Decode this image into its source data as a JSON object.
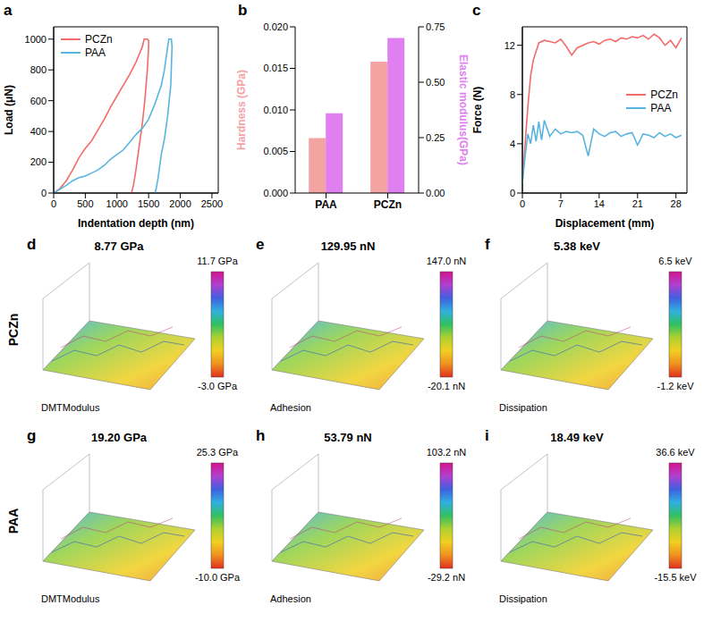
{
  "chart_data": [
    {
      "label": "a",
      "type": "line",
      "x_label": "Indentation depth (nm)",
      "y_label": "Load (μN)",
      "xlim": [
        0,
        2600
      ],
      "xticks": [
        0,
        500,
        1000,
        1500,
        2000,
        2500
      ],
      "ylim": [
        0,
        1080
      ],
      "yticks": [
        0,
        200,
        400,
        600,
        800,
        1000
      ],
      "legend": "upper left",
      "series": [
        {
          "name": "PCZn",
          "color": "#f26b6b",
          "x": [
            0,
            100,
            200,
            300,
            400,
            500,
            600,
            700,
            800,
            900,
            1000,
            1100,
            1200,
            1300,
            1350,
            1400,
            1430,
            1480,
            1500,
            1500,
            1480,
            1440,
            1400,
            1350,
            1300,
            1260,
            1230
          ],
          "values": [
            0,
            30,
            80,
            150,
            230,
            290,
            340,
            410,
            480,
            560,
            630,
            700,
            770,
            850,
            900,
            950,
            1000,
            1000,
            990,
            950,
            800,
            600,
            450,
            300,
            150,
            50,
            0
          ]
        },
        {
          "name": "PAA",
          "color": "#5ab4e0",
          "x": [
            0,
            200,
            300,
            400,
            500,
            600,
            700,
            800,
            900,
            1000,
            1100,
            1200,
            1300,
            1400,
            1500,
            1600,
            1700,
            1750,
            1800,
            1820,
            1860,
            1870,
            1850,
            1800,
            1750,
            1700,
            1650,
            1620,
            1600
          ],
          "values": [
            0,
            50,
            80,
            100,
            110,
            130,
            150,
            180,
            220,
            250,
            280,
            330,
            380,
            420,
            480,
            580,
            700,
            800,
            950,
            1000,
            1000,
            950,
            700,
            500,
            350,
            250,
            100,
            30,
            0
          ]
        }
      ]
    },
    {
      "label": "b",
      "type": "bar",
      "categories": [
        "PAA",
        "PCZn"
      ],
      "ylim": [
        0,
        0.02
      ],
      "yticks": [
        {
          "value": 0,
          "label": "0.000"
        },
        0.005,
        {
          "value": 0.01,
          "label": "0.010"
        },
        0.015,
        {
          "value": 0.02,
          "label": "0.020"
        }
      ],
      "y2lim": [
        0,
        0.75
      ],
      "y2ticks": [
        {
          "value": 0,
          "label": "0.00"
        },
        0.25,
        {
          "value": 0.5,
          "label": "0.50"
        },
        0.75
      ],
      "series": [
        {
          "name": "Hardness (GPa)",
          "color": "#f4a3a3",
          "values": [
            0.0066,
            0.0158
          ]
        },
        {
          "name": "Elastic modulus(GPa)",
          "color": "#df7ff0",
          "axis": "y2",
          "values": [
            0.36,
            0.7
          ]
        }
      ]
    },
    {
      "label": "c",
      "type": "line",
      "x_label": "Displacement (mm)",
      "y_label": "Force (N)",
      "xlim": [
        0,
        30
      ],
      "xticks": [
        0,
        7,
        14,
        21,
        28
      ],
      "ylim": [
        0,
        13.5
      ],
      "yticks": [
        0,
        4,
        8,
        12
      ],
      "legend": "right",
      "series": [
        {
          "name": "PCZn",
          "color": "#f26b6b",
          "x": [
            0,
            0.5,
            1,
            1.5,
            2,
            2.5,
            3,
            4,
            5,
            6,
            7,
            8,
            9,
            10,
            11,
            12,
            13,
            14,
            15,
            16,
            17,
            18,
            19,
            20,
            21,
            22,
            23,
            24,
            25,
            26,
            27,
            28,
            29
          ],
          "values": [
            0.8,
            4,
            7,
            9.5,
            10.8,
            11.5,
            12.2,
            12.4,
            12.3,
            12.2,
            12.5,
            11.9,
            11.2,
            11.8,
            12.0,
            12.2,
            12.3,
            12.1,
            12.4,
            12.5,
            12.3,
            12.6,
            12.5,
            12.7,
            12.6,
            12.8,
            12.5,
            12.9,
            12.6,
            12.0,
            12.4,
            11.8,
            12.6
          ]
        },
        {
          "name": "PAA",
          "color": "#5ab4e0",
          "x": [
            0,
            0.5,
            1,
            1.5,
            2,
            2.5,
            3,
            3.5,
            4,
            5,
            6,
            7,
            8,
            9,
            10,
            11,
            12,
            13,
            14,
            15,
            16,
            17,
            18,
            19,
            20,
            21,
            22,
            23,
            24,
            25,
            26,
            27,
            28,
            29
          ],
          "values": [
            0.8,
            3,
            4.8,
            4.0,
            5.5,
            4.2,
            5.8,
            4.3,
            5.9,
            4.6,
            5.2,
            4.8,
            5.0,
            4.9,
            5.0,
            4.7,
            3.0,
            5.2,
            4.8,
            4.6,
            4.9,
            5.0,
            4.6,
            4.8,
            4.9,
            3.9,
            4.8,
            4.7,
            4.5,
            4.9,
            4.6,
            4.8,
            4.5,
            4.7
          ]
        }
      ]
    }
  ],
  "maps": {
    "rows": [
      {
        "label": "PCZn",
        "panels": [
          {
            "label": "d",
            "title": "8.77 GPa",
            "colorbar": {
              "range": [
                -3.0,
                11.7
              ],
              "labels": [
                "11.7 GPa",
                "-3.0 GPa"
              ]
            },
            "caption": "DMTModulus"
          },
          {
            "label": "e",
            "title": "129.95 nN",
            "colorbar": {
              "range": [
                -20.1,
                147.0
              ],
              "labels": [
                "147.0 nN",
                "-20.1 nN"
              ]
            },
            "caption": "Adhesion"
          },
          {
            "label": "f",
            "title": "5.38 keV",
            "colorbar": {
              "range": [
                -1.2,
                6.5
              ],
              "labels": [
                "6.5 keV",
                "-1.2 keV"
              ]
            },
            "caption": "Dissipation"
          }
        ]
      },
      {
        "label": "PAA",
        "panels": [
          {
            "label": "g",
            "title": "19.20 GPa",
            "colorbar": {
              "range": [
                -10.0,
                25.3
              ],
              "labels": [
                "25.3 GPa",
                "-10.0 GPa"
              ]
            },
            "caption": "DMTModulus"
          },
          {
            "label": "h",
            "title": "53.79 nN",
            "colorbar": {
              "range": [
                -29.2,
                103.2
              ],
              "labels": [
                "103.2 nN",
                "-29.2 nN"
              ]
            },
            "caption": "Adhesion"
          },
          {
            "label": "i",
            "title": "18.49 keV",
            "colorbar": {
              "range": [
                -15.5,
                36.6
              ],
              "labels": [
                "36.6 keV",
                "-15.5 keV"
              ]
            },
            "caption": "Dissipation"
          }
        ]
      }
    ]
  }
}
